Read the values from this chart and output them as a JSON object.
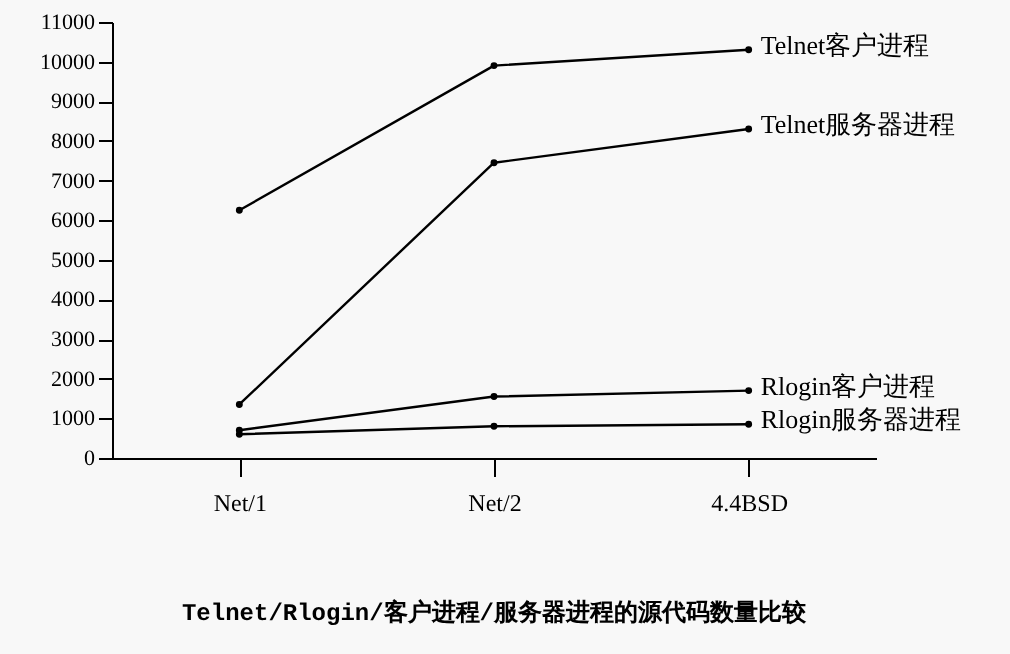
{
  "chart_data": {
    "type": "line",
    "title": "Telnet/Rlogin/客户进程/服务器进程的源代码数量比较",
    "categories": [
      "Net/1",
      "Net/2",
      "4.4BSD"
    ],
    "series": [
      {
        "name": "Telnet客户进程",
        "color": "#000000",
        "values": [
          6250,
          9900,
          10300
        ]
      },
      {
        "name": "Telnet服务器进程",
        "color": "#000000",
        "values": [
          1350,
          7450,
          8300
        ]
      },
      {
        "name": "Rlogin客户进程",
        "color": "#000000",
        "values": [
          700,
          1550,
          1700
        ]
      },
      {
        "name": "Rlogin服务器进程",
        "color": "#000000",
        "values": [
          600,
          800,
          850
        ]
      }
    ],
    "ylim": [
      0,
      11000
    ],
    "yticks": [
      0,
      1000,
      2000,
      3000,
      4000,
      5000,
      6000,
      7000,
      8000,
      9000,
      10000,
      11000
    ],
    "grid": false,
    "legend": false,
    "marker": "circle",
    "line_style": "solid"
  }
}
